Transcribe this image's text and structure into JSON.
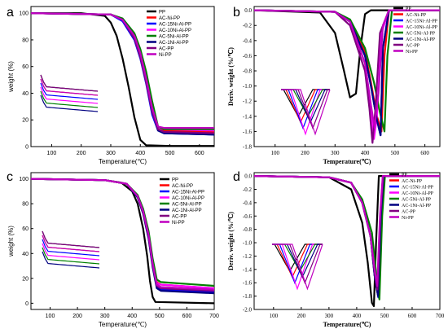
{
  "chart_data": [
    {
      "type": "line",
      "panel_label": "a",
      "xlabel": "Temperature(℃)",
      "ylabel": "weight (%)",
      "xlim": [
        30,
        650
      ],
      "ylim": [
        0,
        105
      ],
      "xticks": [
        100,
        200,
        300,
        400,
        500,
        600
      ],
      "yticks": [
        0,
        20,
        40,
        60,
        80,
        100
      ],
      "legend_position": "top-right",
      "series": [
        {
          "name": "PP",
          "color": "#000000",
          "x": [
            30,
            200,
            280,
            300,
            320,
            340,
            360,
            380,
            400,
            420,
            500,
            650
          ],
          "values": [
            100,
            100,
            98,
            93,
            83,
            66,
            45,
            22,
            5,
            1,
            0.5,
            0.5
          ]
        },
        {
          "name": "AC-Ni-PP",
          "color": "#ff0000",
          "x": [
            30,
            300,
            340,
            380,
            400,
            420,
            440,
            460,
            480,
            650
          ],
          "values": [
            100,
            99,
            95,
            83,
            70,
            52,
            30,
            14,
            12,
            11
          ]
        },
        {
          "name": "AC-15Ni-Al-PP",
          "color": "#0000ff",
          "x": [
            30,
            300,
            340,
            380,
            400,
            420,
            440,
            460,
            480,
            650
          ],
          "values": [
            100,
            99,
            94,
            80,
            66,
            47,
            24,
            12,
            10,
            9
          ]
        },
        {
          "name": "AC-10Ni-Al-PP",
          "color": "#ff00ff",
          "x": [
            30,
            300,
            340,
            380,
            400,
            420,
            440,
            460,
            480,
            650
          ],
          "values": [
            100,
            99,
            95,
            82,
            68,
            50,
            28,
            14,
            13,
            12
          ]
        },
        {
          "name": "AC-5Ni-Al-PP",
          "color": "#008000",
          "x": [
            30,
            300,
            340,
            380,
            400,
            420,
            440,
            460,
            480,
            650
          ],
          "values": [
            100,
            99,
            96,
            85,
            73,
            56,
            34,
            15,
            13,
            13
          ]
        },
        {
          "name": "AC-1Ni-Al-PP",
          "color": "#000080",
          "x": [
            30,
            300,
            340,
            380,
            400,
            420,
            440,
            460,
            480,
            650
          ],
          "values": [
            100,
            99,
            95,
            82,
            69,
            50,
            27,
            12,
            10,
            9
          ]
        },
        {
          "name": "AC-PP",
          "color": "#800080",
          "x": [
            30,
            300,
            340,
            380,
            400,
            420,
            440,
            460,
            480,
            650
          ],
          "values": [
            100,
            99,
            95,
            81,
            67,
            48,
            26,
            13,
            11,
            10
          ]
        },
        {
          "name": "Ni-PP",
          "color": "#c000c0",
          "x": [
            30,
            300,
            340,
            380,
            400,
            420,
            440,
            460,
            480,
            650
          ],
          "values": [
            100,
            99,
            95,
            83,
            70,
            51,
            29,
            15,
            14,
            14
          ]
        }
      ]
    },
    {
      "type": "line",
      "panel_label": "b",
      "xlabel": "Temperature(℃)",
      "ylabel": "Deriv. weight (%/℃)",
      "xlim": [
        30,
        650
      ],
      "ylim": [
        -1.8,
        0.05
      ],
      "xticks": [
        100,
        200,
        300,
        400,
        500,
        600
      ],
      "yticks": [
        0.0,
        -0.2,
        -0.4,
        -0.6,
        -0.8,
        -1.0,
        -1.2,
        -1.4,
        -1.6,
        -1.8
      ],
      "legend_position": "top-right",
      "series": [
        {
          "name": "PP",
          "color": "#000000",
          "x": [
            30,
            250,
            300,
            330,
            350,
            370,
            385,
            400,
            420,
            650
          ],
          "values": [
            0,
            -0.03,
            -0.3,
            -0.8,
            -1.15,
            -1.1,
            -0.5,
            -0.05,
            0,
            0
          ]
        },
        {
          "name": "AC-Ni-PP",
          "color": "#ff0000",
          "x": [
            30,
            300,
            350,
            400,
            420,
            440,
            455,
            465,
            480,
            650
          ],
          "values": [
            0,
            -0.02,
            -0.15,
            -0.55,
            -0.95,
            -1.4,
            -1.6,
            -0.6,
            0,
            0
          ]
        },
        {
          "name": "AC-15Ni-Al-PP",
          "color": "#0000ff",
          "x": [
            30,
            300,
            350,
            400,
            420,
            440,
            452,
            460,
            480,
            650
          ],
          "values": [
            0,
            -0.02,
            -0.15,
            -0.6,
            -1.0,
            -1.45,
            -1.65,
            -0.5,
            0,
            0
          ]
        },
        {
          "name": "AC-10Ni-Al-PP",
          "color": "#ff00ff",
          "x": [
            30,
            300,
            350,
            400,
            420,
            430,
            440,
            455,
            480,
            650
          ],
          "values": [
            0,
            -0.02,
            -0.15,
            -0.7,
            -1.3,
            -1.7,
            -1.4,
            -0.3,
            0,
            0
          ]
        },
        {
          "name": "AC-5Ni-Al-PP",
          "color": "#008000",
          "x": [
            30,
            300,
            350,
            400,
            430,
            450,
            465,
            475,
            490,
            650
          ],
          "values": [
            0,
            -0.02,
            -0.12,
            -0.5,
            -0.95,
            -1.35,
            -1.6,
            -0.6,
            0,
            0
          ]
        },
        {
          "name": "AC-1Ni-Al-PP",
          "color": "#000080",
          "x": [
            30,
            300,
            350,
            400,
            420,
            440,
            452,
            460,
            480,
            650
          ],
          "values": [
            0,
            -0.02,
            -0.15,
            -0.6,
            -1.0,
            -1.45,
            -1.65,
            -0.5,
            0,
            0
          ]
        },
        {
          "name": "AC-PP",
          "color": "#800080",
          "x": [
            30,
            300,
            350,
            400,
            415,
            425,
            435,
            450,
            480,
            650
          ],
          "values": [
            0,
            -0.02,
            -0.2,
            -0.8,
            -1.3,
            -1.75,
            -1.3,
            -0.3,
            0,
            0
          ]
        },
        {
          "name": "Ni-PP",
          "color": "#c000c0",
          "x": [
            30,
            300,
            350,
            400,
            420,
            432,
            445,
            460,
            480,
            650
          ],
          "values": [
            0,
            -0.02,
            -0.15,
            -0.7,
            -1.25,
            -1.55,
            -1.1,
            -0.2,
            0,
            0
          ]
        }
      ]
    },
    {
      "type": "line",
      "panel_label": "c",
      "xlabel": "Temperature(℃)",
      "ylabel": "weight (%)",
      "xlim": [
        30,
        700
      ],
      "ylim": [
        -5,
        105
      ],
      "xticks": [
        100,
        200,
        300,
        400,
        500,
        600,
        700
      ],
      "yticks": [
        0,
        20,
        40,
        60,
        80,
        100
      ],
      "legend_position": "top-right",
      "series": [
        {
          "name": "PP",
          "color": "#000000",
          "x": [
            30,
            300,
            360,
            400,
            420,
            440,
            455,
            465,
            475,
            485,
            700
          ],
          "values": [
            100,
            99,
            97,
            90,
            80,
            60,
            38,
            18,
            5,
            1,
            0
          ]
        },
        {
          "name": "AC-Ni-PP",
          "color": "#ff0000",
          "x": [
            30,
            300,
            380,
            420,
            440,
            460,
            475,
            490,
            505,
            700
          ],
          "values": [
            100,
            99,
            96,
            86,
            74,
            55,
            33,
            17,
            15,
            12
          ]
        },
        {
          "name": "AC-15Ni-Al-PP",
          "color": "#0000ff",
          "x": [
            30,
            300,
            380,
            420,
            440,
            460,
            475,
            490,
            505,
            700
          ],
          "values": [
            100,
            99,
            96,
            86,
            73,
            53,
            30,
            13,
            11,
            9
          ]
        },
        {
          "name": "AC-10Ni-Al-PP",
          "color": "#ff00ff",
          "x": [
            30,
            300,
            380,
            420,
            440,
            460,
            475,
            490,
            505,
            700
          ],
          "values": [
            100,
            99,
            96,
            86,
            74,
            55,
            33,
            16,
            15,
            12
          ]
        },
        {
          "name": "AC-5Ni-Al-PP",
          "color": "#008000",
          "x": [
            30,
            300,
            380,
            420,
            440,
            460,
            475,
            490,
            505,
            700
          ],
          "values": [
            100,
            99,
            96,
            87,
            76,
            58,
            36,
            19,
            17,
            14
          ]
        },
        {
          "name": "AC-1Ni-Al-PP",
          "color": "#000080",
          "x": [
            30,
            300,
            380,
            420,
            440,
            460,
            475,
            490,
            505,
            700
          ],
          "values": [
            100,
            99,
            96,
            85,
            72,
            52,
            29,
            12,
            10,
            8
          ]
        },
        {
          "name": "AC-PP",
          "color": "#800080",
          "x": [
            30,
            300,
            380,
            420,
            440,
            460,
            475,
            490,
            505,
            700
          ],
          "values": [
            100,
            99,
            96,
            86,
            73,
            54,
            31,
            14,
            12,
            10
          ]
        },
        {
          "name": "Ni-PP",
          "color": "#c000c0",
          "x": [
            30,
            300,
            380,
            420,
            440,
            460,
            475,
            490,
            505,
            700
          ],
          "values": [
            100,
            99,
            96,
            86,
            74,
            55,
            32,
            15,
            13,
            11
          ]
        }
      ]
    },
    {
      "type": "line",
      "panel_label": "d",
      "xlabel": "Temperature(℃)",
      "ylabel": "Deriv. weight (%/℃)",
      "xlim": [
        30,
        700
      ],
      "ylim": [
        -2.0,
        0.05
      ],
      "xticks": [
        100,
        200,
        300,
        400,
        500,
        600,
        700
      ],
      "yticks": [
        0.0,
        -0.2,
        -0.4,
        -0.6,
        -0.8,
        -1.0,
        -1.2,
        -1.4,
        -1.6,
        -1.8,
        -2.0
      ],
      "legend_position": "top-right",
      "series": [
        {
          "name": "PP",
          "color": "#000000",
          "x": [
            30,
            300,
            380,
            420,
            440,
            455,
            462,
            470,
            480,
            700
          ],
          "values": [
            0,
            -0.02,
            -0.2,
            -0.7,
            -1.3,
            -1.9,
            -1.95,
            -1.0,
            0,
            0
          ]
        },
        {
          "name": "AC-Ni-PP",
          "color": "#ff0000",
          "x": [
            30,
            300,
            380,
            420,
            450,
            465,
            475,
            485,
            495,
            700
          ],
          "values": [
            0,
            -0.02,
            -0.1,
            -0.4,
            -0.9,
            -1.5,
            -1.75,
            -0.6,
            0,
            0
          ]
        },
        {
          "name": "AC-15Ni-Al-PP",
          "color": "#0000ff",
          "x": [
            30,
            300,
            380,
            420,
            450,
            465,
            478,
            488,
            498,
            700
          ],
          "values": [
            0,
            -0.02,
            -0.1,
            -0.4,
            -0.9,
            -1.5,
            -1.82,
            -0.6,
            0,
            0
          ]
        },
        {
          "name": "AC-10Ni-Al-PP",
          "color": "#ff00ff",
          "x": [
            30,
            300,
            380,
            420,
            450,
            465,
            476,
            486,
            496,
            700
          ],
          "values": [
            0,
            -0.02,
            -0.1,
            -0.4,
            -0.9,
            -1.45,
            -1.72,
            -0.6,
            0,
            0
          ]
        },
        {
          "name": "AC-5Ni-Al-PP",
          "color": "#008000",
          "x": [
            30,
            300,
            380,
            420,
            455,
            470,
            482,
            492,
            502,
            700
          ],
          "values": [
            0,
            -0.02,
            -0.1,
            -0.35,
            -0.85,
            -1.45,
            -1.85,
            -0.6,
            0,
            0
          ]
        },
        {
          "name": "AC-1Ni-Al-PP",
          "color": "#000080",
          "x": [
            30,
            300,
            380,
            420,
            450,
            465,
            477,
            487,
            497,
            700
          ],
          "values": [
            0,
            -0.02,
            -0.1,
            -0.4,
            -0.9,
            -1.5,
            -1.8,
            -0.6,
            0,
            0
          ]
        },
        {
          "name": "AC-PP",
          "color": "#800080",
          "x": [
            30,
            300,
            380,
            420,
            450,
            465,
            475,
            485,
            495,
            700
          ],
          "values": [
            0,
            -0.02,
            -0.1,
            -0.4,
            -0.9,
            -1.45,
            -1.7,
            -0.6,
            0,
            0
          ]
        },
        {
          "name": "Ni-PP",
          "color": "#c000c0",
          "x": [
            30,
            300,
            380,
            420,
            450,
            465,
            474,
            484,
            494,
            700
          ],
          "values": [
            0,
            -0.02,
            -0.1,
            -0.4,
            -0.9,
            -1.4,
            -1.65,
            -0.6,
            0,
            0
          ]
        }
      ]
    }
  ]
}
